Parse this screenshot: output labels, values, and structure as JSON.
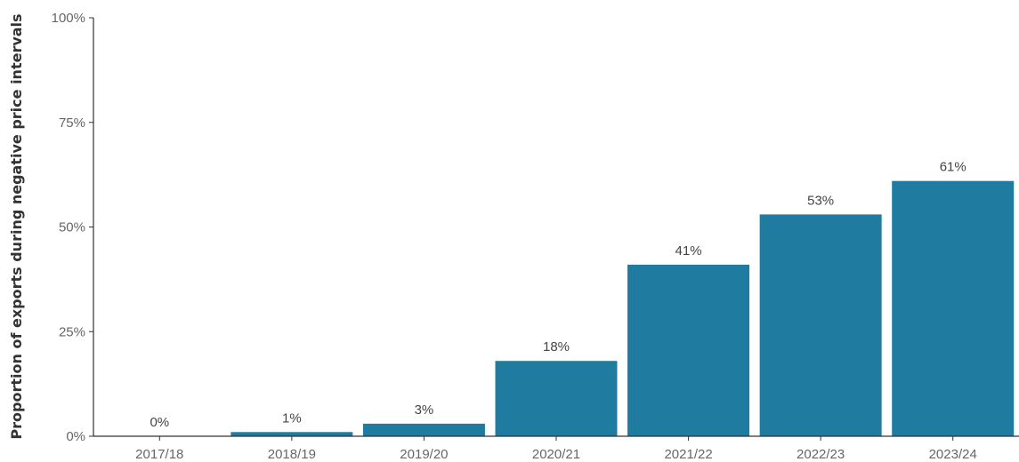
{
  "chart_data": {
    "type": "bar",
    "categories": [
      "2017/18",
      "2018/19",
      "2019/20",
      "2020/21",
      "2021/22",
      "2022/23",
      "2023/24"
    ],
    "values": [
      0,
      1,
      3,
      18,
      41,
      53,
      61
    ],
    "data_labels": [
      "0%",
      "1%",
      "3%",
      "18%",
      "41%",
      "53%",
      "61%"
    ],
    "title": "",
    "xlabel": "",
    "ylabel": "Proportion of exports during negative price intervals",
    "ylim": [
      0,
      100
    ],
    "yticks": [
      0,
      25,
      50,
      75,
      100
    ],
    "ytick_labels": [
      "0%",
      "25%",
      "50%",
      "75%",
      "100%"
    ],
    "bar_color": "#1f7ba0",
    "grid": false,
    "legend": "none"
  }
}
